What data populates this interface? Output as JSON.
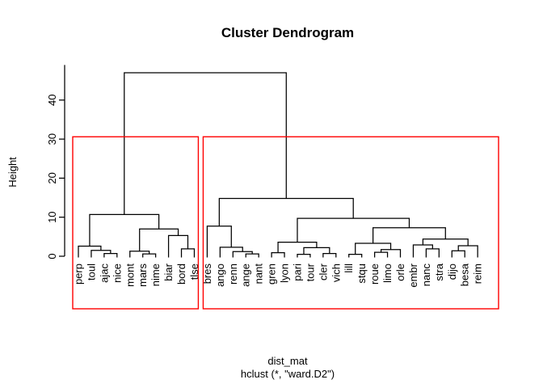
{
  "chart_data": {
    "type": "dendrogram",
    "title": "Cluster Dendrogram",
    "xlabel": "dist_mat",
    "sublabel": "hclust (*, \"ward.D2\")",
    "ylabel": "Height",
    "yticks": [
      0,
      10,
      20,
      30,
      40
    ],
    "ylim": [
      0,
      49
    ],
    "line_color": "#000000",
    "box_color": "#FF0000",
    "leaves": [
      "perp",
      "toul",
      "ajac",
      "nice",
      "mont",
      "mars",
      "nime",
      "biar",
      "bord",
      "tlse",
      "bres",
      "ango",
      "renn",
      "ange",
      "nant",
      "gren",
      "lyon",
      "pari",
      "tour",
      "cler",
      "vich",
      "lill",
      "stqu",
      "roue",
      "limo",
      "orle",
      "embr",
      "nanc",
      "stra",
      "dijo",
      "besa",
      "reim"
    ],
    "tree": {
      "h": 47.0,
      "c": [
        {
          "h": 10.7,
          "c": [
            {
              "h": 2.6,
              "c": [
                "perp",
                {
                  "h": 1.5,
                  "c": [
                    "toul",
                    {
                      "h": 0.7,
                      "c": [
                        "ajac",
                        "nice"
                      ]
                    }
                  ]
                }
              ]
            },
            {
              "h": 7.0,
              "c": [
                {
                  "h": 1.3,
                  "c": [
                    "mont",
                    {
                      "h": 0.6,
                      "c": [
                        "mars",
                        "nime"
                      ]
                    }
                  ]
                },
                {
                  "h": 5.3,
                  "c": [
                    "biar",
                    {
                      "h": 1.9,
                      "c": [
                        "bord",
                        "tlse"
                      ]
                    }
                  ]
                }
              ]
            }
          ]
        },
        {
          "h": 14.8,
          "c": [
            {
              "h": 7.7,
              "c": [
                "bres",
                {
                  "h": 2.3,
                  "c": [
                    "ango",
                    {
                      "h": 1.2,
                      "c": [
                        "renn",
                        {
                          "h": 0.6,
                          "c": [
                            "ange",
                            "nant"
                          ]
                        }
                      ]
                    }
                  ]
                }
              ]
            },
            {
              "h": 9.7,
              "c": [
                {
                  "h": 3.6,
                  "c": [
                    {
                      "h": 0.9,
                      "c": [
                        "gren",
                        "lyon"
                      ]
                    },
                    {
                      "h": 2.2,
                      "c": [
                        {
                          "h": 0.5,
                          "c": [
                            "pari",
                            "tour"
                          ]
                        },
                        {
                          "h": 0.7,
                          "c": [
                            "cler",
                            "vich"
                          ]
                        }
                      ]
                    }
                  ]
                },
                {
                  "h": 7.3,
                  "c": [
                    {
                      "h": 3.3,
                      "c": [
                        {
                          "h": 0.5,
                          "c": [
                            "lill",
                            "stqu"
                          ]
                        },
                        {
                          "h": 1.7,
                          "c": [
                            {
                              "h": 1.0,
                              "c": [
                                "roue",
                                "limo"
                              ]
                            },
                            "orle"
                          ]
                        }
                      ]
                    },
                    {
                      "h": 4.4,
                      "c": [
                        {
                          "h": 2.9,
                          "c": [
                            "embr",
                            {
                              "h": 1.9,
                              "c": [
                                "nanc",
                                "stra"
                              ]
                            }
                          ]
                        },
                        {
                          "h": 2.7,
                          "c": [
                            {
                              "h": 1.4,
                              "c": [
                                "dijo",
                                "besa"
                              ]
                            },
                            "reim"
                          ]
                        }
                      ]
                    }
                  ]
                }
              ]
            }
          ]
        }
      ]
    },
    "cluster_boxes": [
      {
        "from_leaf": 0,
        "to_leaf": 9,
        "height": 30.6
      },
      {
        "from_leaf": 10,
        "to_leaf": 31,
        "height": 30.6
      }
    ]
  }
}
